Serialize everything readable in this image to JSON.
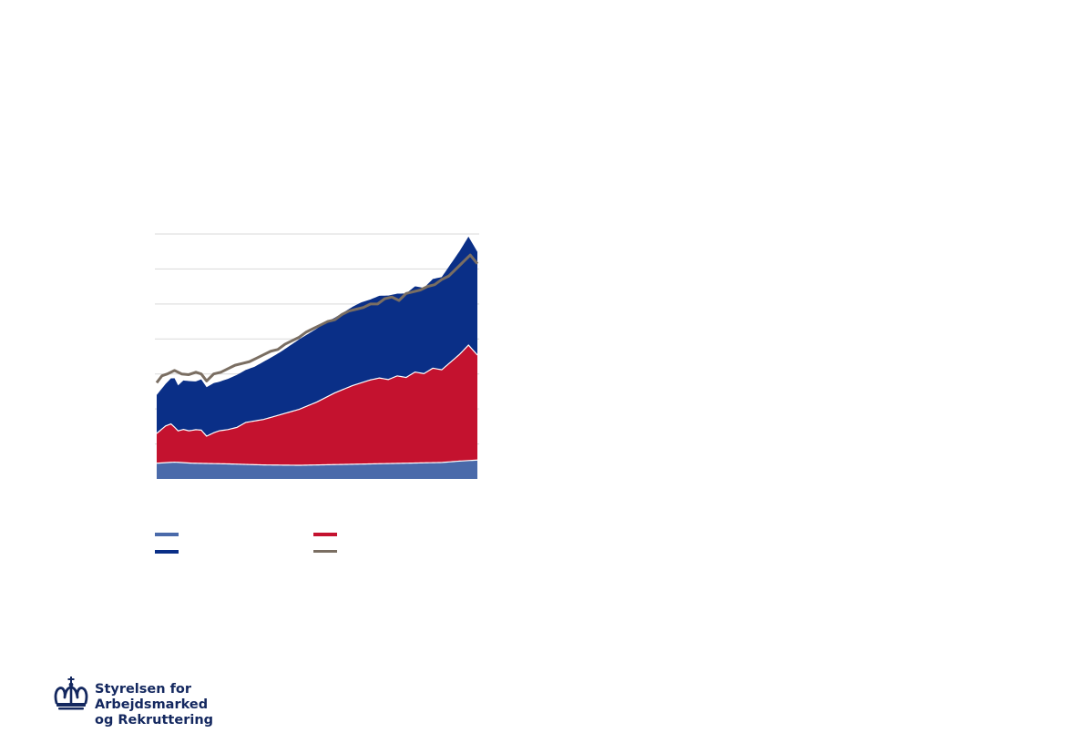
{
  "colors": {
    "series_a": "#4a6aaa",
    "series_b": "#c4122f",
    "series_c": "#0a2f87",
    "series_total": "#7a6e62",
    "grid": "#d9d9d9",
    "logo": "#14285f"
  },
  "logo": {
    "icon": "crown-icon",
    "line1": "Styrelsen for Arbejdsmarked",
    "line2": "og Rekruttering"
  },
  "chart_data": {
    "type": "area",
    "stacked": true,
    "grid": true,
    "legend_position": "bottom",
    "ylim": [
      0,
      7
    ],
    "y_gridlines": [
      1,
      2,
      3,
      4,
      5,
      6,
      7
    ],
    "x_range": [
      0,
      180
    ],
    "series": [
      {
        "key": "a",
        "color": "#4a6aaa",
        "style": "area",
        "label": "",
        "x": [
          0,
          10,
          20,
          40,
          60,
          80,
          100,
          120,
          140,
          160,
          170,
          180
        ],
        "values": [
          0.45,
          0.48,
          0.45,
          0.43,
          0.4,
          0.39,
          0.41,
          0.43,
          0.45,
          0.47,
          0.51,
          0.54
        ]
      },
      {
        "key": "b",
        "color": "#c4122f",
        "style": "area",
        "label": "",
        "x": [
          0,
          5,
          8,
          12,
          15,
          18,
          22,
          25,
          28,
          32,
          35,
          40,
          45,
          50,
          60,
          70,
          80,
          90,
          100,
          110,
          120,
          125,
          130,
          135,
          140,
          145,
          150,
          155,
          160,
          165,
          170,
          175,
          180
        ],
        "values": [
          0.85,
          1.05,
          1.1,
          0.9,
          0.95,
          0.92,
          0.96,
          0.95,
          0.78,
          0.88,
          0.94,
          0.98,
          1.05,
          1.2,
          1.3,
          1.45,
          1.6,
          1.8,
          2.05,
          2.25,
          2.4,
          2.45,
          2.4,
          2.5,
          2.45,
          2.6,
          2.55,
          2.7,
          2.65,
          2.85,
          3.05,
          3.3,
          3.0
        ]
      },
      {
        "key": "c",
        "color": "#0a2f87",
        "style": "area",
        "label": "",
        "x": [
          0,
          5,
          8,
          10,
          12,
          15,
          18,
          22,
          25,
          28,
          32,
          35,
          40,
          45,
          50,
          55,
          60,
          65,
          70,
          75,
          80,
          85,
          90,
          95,
          100,
          105,
          110,
          115,
          120,
          125,
          130,
          135,
          140,
          145,
          150,
          155,
          160,
          165,
          170,
          175,
          180
        ],
        "values": [
          1.1,
          1.2,
          1.3,
          1.4,
          1.3,
          1.4,
          1.42,
          1.38,
          1.45,
          1.4,
          1.42,
          1.4,
          1.45,
          1.5,
          1.5,
          1.55,
          1.65,
          1.72,
          1.8,
          1.9,
          2.0,
          2.05,
          2.1,
          2.15,
          2.15,
          2.2,
          2.25,
          2.3,
          2.3,
          2.35,
          2.4,
          2.35,
          2.4,
          2.45,
          2.45,
          2.55,
          2.65,
          2.8,
          2.95,
          3.1,
          2.95
        ]
      },
      {
        "key": "total",
        "color": "#7a6e62",
        "style": "line",
        "label": "",
        "x": [
          0,
          3,
          6,
          10,
          14,
          18,
          22,
          25,
          28,
          32,
          36,
          40,
          44,
          48,
          52,
          56,
          60,
          64,
          68,
          72,
          76,
          80,
          84,
          88,
          92,
          96,
          100,
          104,
          108,
          112,
          116,
          120,
          124,
          128,
          132,
          136,
          140,
          144,
          148,
          152,
          156,
          160,
          164,
          168,
          172,
          176,
          180
        ],
        "values": [
          2.75,
          2.95,
          3.0,
          3.1,
          3.0,
          2.98,
          3.05,
          3.0,
          2.8,
          3.0,
          3.05,
          3.15,
          3.25,
          3.3,
          3.35,
          3.45,
          3.55,
          3.65,
          3.7,
          3.85,
          3.95,
          4.05,
          4.2,
          4.3,
          4.4,
          4.5,
          4.55,
          4.7,
          4.8,
          4.85,
          4.9,
          5.0,
          5.0,
          5.15,
          5.2,
          5.1,
          5.3,
          5.35,
          5.4,
          5.5,
          5.55,
          5.7,
          5.8,
          6.0,
          6.2,
          6.4,
          6.15
        ]
      }
    ]
  }
}
